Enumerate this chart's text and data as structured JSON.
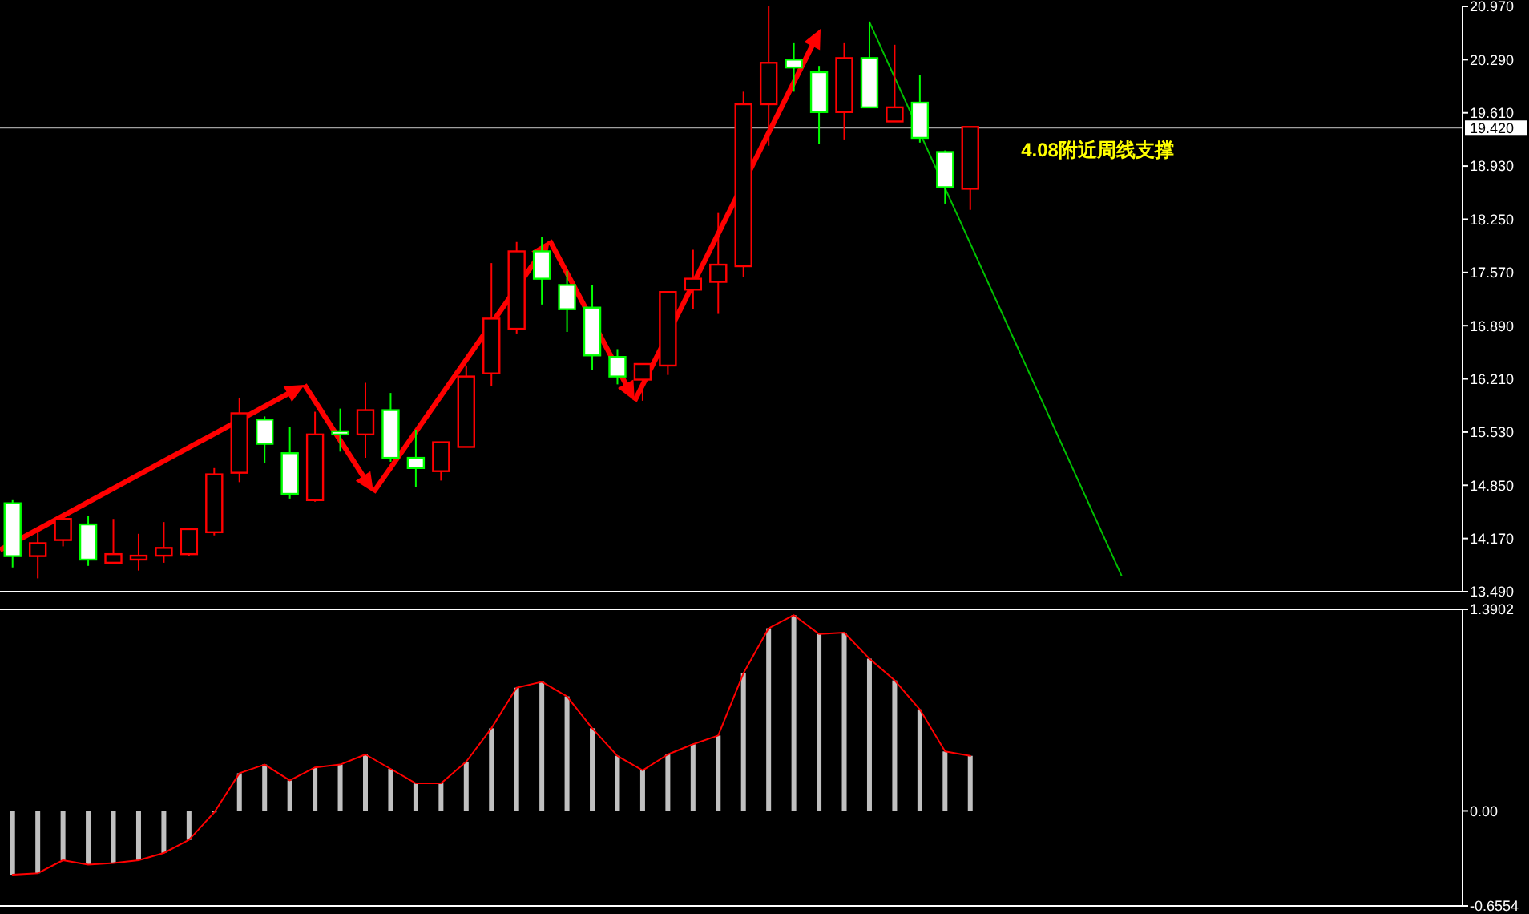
{
  "chart_data": [
    {
      "type": "candlestick",
      "categories": [
        null,
        null,
        null,
        null,
        null,
        null,
        null,
        null,
        null,
        null,
        null,
        null,
        null,
        null,
        null,
        null,
        null,
        null,
        null,
        null,
        null,
        null,
        null,
        null,
        null,
        null,
        null,
        null,
        null,
        null,
        null,
        null,
        null,
        null,
        null,
        null,
        null,
        null,
        null,
        null,
        null,
        null,
        null,
        null,
        null,
        null,
        null,
        null,
        null,
        null,
        null,
        null,
        null,
        null,
        null,
        null,
        null,
        null
      ],
      "ohlc": [
        [
          14.62,
          14.66,
          13.8,
          13.945
        ],
        [
          13.945,
          14.31,
          13.66,
          14.11
        ],
        [
          14.15,
          14.42,
          14.07,
          14.42
        ],
        [
          14.35,
          14.46,
          13.82,
          13.9
        ],
        [
          13.86,
          14.42,
          13.86,
          13.97
        ],
        [
          13.9,
          14.23,
          13.76,
          13.95
        ],
        [
          13.95,
          14.38,
          13.86,
          14.05
        ],
        [
          13.97,
          14.31,
          13.95,
          14.29
        ],
        [
          14.25,
          15.07,
          14.21,
          14.99
        ],
        [
          15.01,
          15.97,
          14.89,
          15.77
        ],
        [
          15.69,
          15.73,
          15.13,
          15.38
        ],
        [
          15.26,
          15.6,
          14.68,
          14.74
        ],
        [
          14.66,
          15.79,
          14.64,
          15.5
        ],
        [
          15.54,
          15.83,
          15.28,
          15.5
        ],
        [
          15.5,
          16.16,
          15.2,
          15.81
        ],
        [
          15.81,
          16.03,
          15.15,
          15.2
        ],
        [
          15.2,
          15.56,
          14.83,
          15.07
        ],
        [
          15.03,
          15.4,
          14.91,
          15.4
        ],
        [
          15.34,
          16.38,
          15.34,
          16.24
        ],
        [
          16.28,
          17.69,
          16.12,
          16.98
        ],
        [
          16.85,
          17.96,
          16.79,
          17.84
        ],
        [
          17.84,
          18.02,
          17.16,
          17.49
        ],
        [
          17.41,
          17.59,
          16.81,
          17.1
        ],
        [
          17.12,
          17.41,
          16.32,
          16.51
        ],
        [
          16.49,
          16.59,
          16.14,
          16.24
        ],
        [
          16.2,
          16.4,
          15.93,
          16.4
        ],
        [
          16.38,
          17.32,
          16.26,
          17.32
        ],
        [
          17.35,
          17.86,
          17.1,
          17.49
        ],
        [
          17.45,
          18.33,
          17.04,
          17.67
        ],
        [
          17.65,
          19.88,
          17.51,
          19.72
        ],
        [
          19.72,
          20.97,
          19.19,
          20.25
        ],
        [
          20.29,
          20.5,
          19.88,
          20.19
        ],
        [
          20.13,
          20.21,
          19.21,
          19.62
        ],
        [
          19.62,
          20.5,
          19.27,
          20.31
        ],
        [
          20.31,
          20.77,
          19.68,
          19.68
        ],
        [
          19.5,
          20.48,
          19.5,
          19.68
        ],
        [
          19.74,
          20.09,
          19.23,
          19.29
        ],
        [
          19.11,
          19.13,
          18.45,
          18.66
        ],
        [
          18.64,
          19.43,
          18.37,
          19.43
        ],
        null,
        null,
        null,
        null,
        null,
        null,
        null,
        null,
        null,
        null,
        null,
        null,
        null,
        null,
        null,
        null,
        null,
        null,
        null
      ],
      "series": [
        {
          "type": "line",
          "color": "#00c000",
          "values": [
            null,
            null,
            null,
            null,
            null,
            null,
            null,
            null,
            null,
            null,
            null,
            null,
            null,
            null,
            null,
            null,
            null,
            null,
            null,
            null,
            null,
            null,
            null,
            null,
            null,
            null,
            null,
            null,
            null,
            null,
            null,
            null,
            null,
            null,
            20.77,
            null,
            null,
            null,
            null,
            null,
            null,
            null,
            null,
            null,
            13.7,
            null,
            null,
            null,
            null,
            null,
            null,
            null,
            null,
            null,
            null,
            null,
            null,
            null
          ]
        }
      ],
      "ylim": [
        13.49,
        20.97
      ],
      "yticks": [
        {
          "value": 13.49,
          "label": "13.490"
        },
        {
          "value": 14.17,
          "label": "14.170"
        },
        {
          "value": 14.85,
          "label": "14.850"
        },
        {
          "value": 15.53,
          "label": "15.530"
        },
        {
          "value": 16.21,
          "label": "16.210"
        },
        {
          "value": 16.89,
          "label": "16.890"
        },
        {
          "value": 17.57,
          "label": "17.570"
        },
        {
          "value": 18.25,
          "label": "18.250"
        },
        {
          "value": 18.93,
          "label": "18.930"
        },
        {
          "value": 19.61,
          "label": "19.610"
        },
        {
          "value": 20.29,
          "label": "20.290"
        },
        {
          "value": 20.97,
          "label": "20.970"
        }
      ],
      "ref_lines": [
        {
          "axis": "y",
          "value": 19.42,
          "label": "19.420",
          "color": "#a0a0a0"
        }
      ],
      "annotations": [
        "4.08附近周线支撑"
      ],
      "tick_labels": "y"
    },
    {
      "type": "bar",
      "categories": [
        null,
        null,
        null,
        null,
        null,
        null,
        null,
        null,
        null,
        null,
        null,
        null,
        null,
        null,
        null,
        null,
        null,
        null,
        null,
        null,
        null,
        null,
        null,
        null,
        null,
        null,
        null,
        null,
        null,
        null,
        null,
        null,
        null,
        null,
        null,
        null,
        null,
        null,
        null,
        null,
        null,
        null,
        null,
        null,
        null,
        null,
        null,
        null,
        null,
        null,
        null,
        null,
        null,
        null,
        null,
        null,
        null,
        null
      ],
      "series": [
        {
          "type": "bar",
          "color": "#c0c0c0",
          "values": [
            -0.44,
            -0.43,
            -0.34,
            -0.37,
            -0.36,
            -0.34,
            -0.29,
            -0.2,
            -0.01,
            0.26,
            0.32,
            0.21,
            0.3,
            0.32,
            0.39,
            0.29,
            0.19,
            0.19,
            0.34,
            0.57,
            0.85,
            0.89,
            0.79,
            0.57,
            0.38,
            0.28,
            0.39,
            0.46,
            0.52,
            0.95,
            1.26,
            1.35,
            1.22,
            1.23,
            1.05,
            0.9,
            0.7,
            0.41,
            0.38,
            null,
            null,
            null,
            null,
            null,
            null,
            null,
            null,
            null,
            null,
            null,
            null,
            null,
            null,
            null,
            null,
            null,
            null,
            null
          ]
        },
        {
          "type": "line",
          "color": "#ff0000",
          "values": [
            -0.44,
            -0.43,
            -0.34,
            -0.37,
            -0.36,
            -0.34,
            -0.29,
            -0.2,
            -0.01,
            0.26,
            0.32,
            0.21,
            0.3,
            0.32,
            0.39,
            0.29,
            0.19,
            0.19,
            0.34,
            0.57,
            0.85,
            0.89,
            0.79,
            0.57,
            0.38,
            0.28,
            0.39,
            0.46,
            0.52,
            0.95,
            1.26,
            1.35,
            1.22,
            1.23,
            1.05,
            0.9,
            0.7,
            0.41,
            0.38,
            null,
            null,
            null,
            null,
            null,
            null,
            null,
            null,
            null,
            null,
            null,
            null,
            null,
            null,
            null,
            null,
            null,
            null,
            null
          ]
        }
      ],
      "ylim": [
        -0.6554,
        1.3902
      ],
      "yticks": [
        1.3902,
        {
          "value": 0,
          "label": "0.00"
        },
        -0.6554
      ],
      "tick_labels": "y"
    }
  ]
}
